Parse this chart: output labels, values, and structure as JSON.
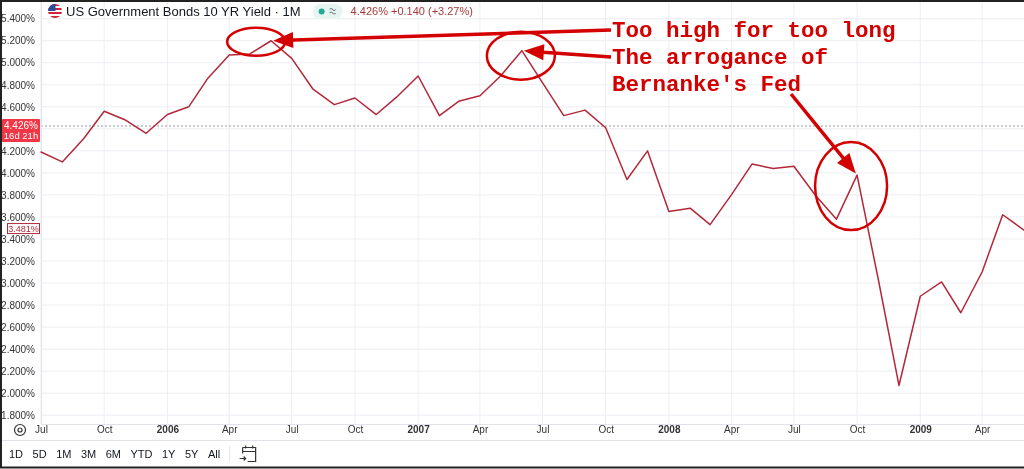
{
  "chart_data": {
    "type": "line",
    "title": "US Government Bonds 10 YR Yield · 1M",
    "subtitle": "4.426% +0.140 (+3.27%)",
    "x": [
      "2005-07",
      "2005-08",
      "2005-09",
      "2005-10",
      "2005-11",
      "2005-12",
      "2006-01",
      "2006-02",
      "2006-03",
      "2006-04",
      "2006-05",
      "2006-06",
      "2006-07",
      "2006-08",
      "2006-09",
      "2006-10",
      "2006-11",
      "2006-12",
      "2007-01",
      "2007-02",
      "2007-03",
      "2007-04",
      "2007-05",
      "2007-06",
      "2007-07",
      "2007-08",
      "2007-09",
      "2007-10",
      "2007-11",
      "2007-12",
      "2008-01",
      "2008-02",
      "2008-03",
      "2008-04",
      "2008-05",
      "2008-06",
      "2008-07",
      "2008-08",
      "2008-09",
      "2008-10",
      "2008-11",
      "2008-12",
      "2009-01",
      "2009-02",
      "2009-03",
      "2009-04",
      "2009-05",
      "2009-06"
    ],
    "series": [
      {
        "color": "#b2283a",
        "values": [
          4.19,
          4.1,
          4.31,
          4.56,
          4.48,
          4.36,
          4.53,
          4.6,
          4.86,
          5.07,
          5.08,
          5.2,
          5.04,
          4.76,
          4.62,
          4.68,
          4.53,
          4.69,
          4.88,
          4.52,
          4.65,
          4.7,
          4.88,
          5.11,
          4.82,
          4.52,
          4.57,
          4.41,
          3.94,
          4.2,
          3.65,
          3.68,
          3.53,
          3.8,
          4.08,
          4.04,
          4.06,
          3.8,
          3.58,
          3.98,
          3.03,
          2.07,
          2.88,
          3.01,
          2.73,
          3.1,
          3.62,
          3.481
        ]
      }
    ],
    "xlim": [
      "2005-07",
      "2009-06"
    ],
    "xticks": [
      {
        "value": "2005-07",
        "label": "Jul"
      },
      {
        "value": "2005-10",
        "label": "Oct"
      },
      {
        "value": "2006-01",
        "label": "2006"
      },
      {
        "value": "2006-04",
        "label": "Apr"
      },
      {
        "value": "2006-07",
        "label": "Jul"
      },
      {
        "value": "2006-10",
        "label": "Oct"
      },
      {
        "value": "2007-01",
        "label": "2007"
      },
      {
        "value": "2007-04",
        "label": "Apr"
      },
      {
        "value": "2007-07",
        "label": "Jul"
      },
      {
        "value": "2007-10",
        "label": "Oct"
      },
      {
        "value": "2008-01",
        "label": "2008"
      },
      {
        "value": "2008-04",
        "label": "Apr"
      },
      {
        "value": "2008-07",
        "label": "Jul"
      },
      {
        "value": "2008-10",
        "label": "Oct"
      },
      {
        "value": "2009-01",
        "label": "2009"
      },
      {
        "value": "2009-04",
        "label": "Apr"
      }
    ],
    "ylim": [
      1.72,
      5.57
    ],
    "yticks": [
      {
        "value": 1.8,
        "label": "1.800%"
      },
      {
        "value": 2.0,
        "label": "2.000%"
      },
      {
        "value": 2.2,
        "label": "2.200%"
      },
      {
        "value": 2.4,
        "label": "2.400%"
      },
      {
        "value": 2.6,
        "label": "2.600%"
      },
      {
        "value": 2.8,
        "label": "2.800%"
      },
      {
        "value": 3.0,
        "label": "3.000%"
      },
      {
        "value": 3.2,
        "label": "3.200%"
      },
      {
        "value": 3.4,
        "label": "3.400%"
      },
      {
        "value": 3.6,
        "label": "3.600%"
      },
      {
        "value": 3.8,
        "label": "3.800%"
      },
      {
        "value": 4.0,
        "label": "4.000%"
      },
      {
        "value": 4.2,
        "label": "4.200%"
      },
      {
        "value": 4.4,
        "label": null
      },
      {
        "value": 4.6,
        "label": "4.600%"
      },
      {
        "value": 4.8,
        "label": "4.800%"
      },
      {
        "value": 5.0,
        "label": "5.000%"
      },
      {
        "value": 5.2,
        "label": "5.200%"
      },
      {
        "value": 5.4,
        "label": "5.400%"
      }
    ],
    "grid": true,
    "ref_lines": [
      {
        "axis": "y",
        "value": 4.426,
        "label": "4.426%",
        "line_style": "dotted"
      }
    ],
    "annotations": [
      {
        "text": "Too high for too long",
        "x": "2006-06",
        "y": 5.2
      },
      {
        "text": "The arrogance of",
        "x": "2007-06",
        "y": 5.11
      },
      {
        "text": "Bernanke's Fed",
        "x": "2008-10",
        "y": 3.98
      },
      {
        "text": "3.481%",
        "y": 3.481
      },
      "16d 21h",
      "1D",
      "5D",
      "1M",
      "3M",
      "6M",
      "YTD",
      "1Y",
      "5Y",
      "All"
    ]
  }
}
